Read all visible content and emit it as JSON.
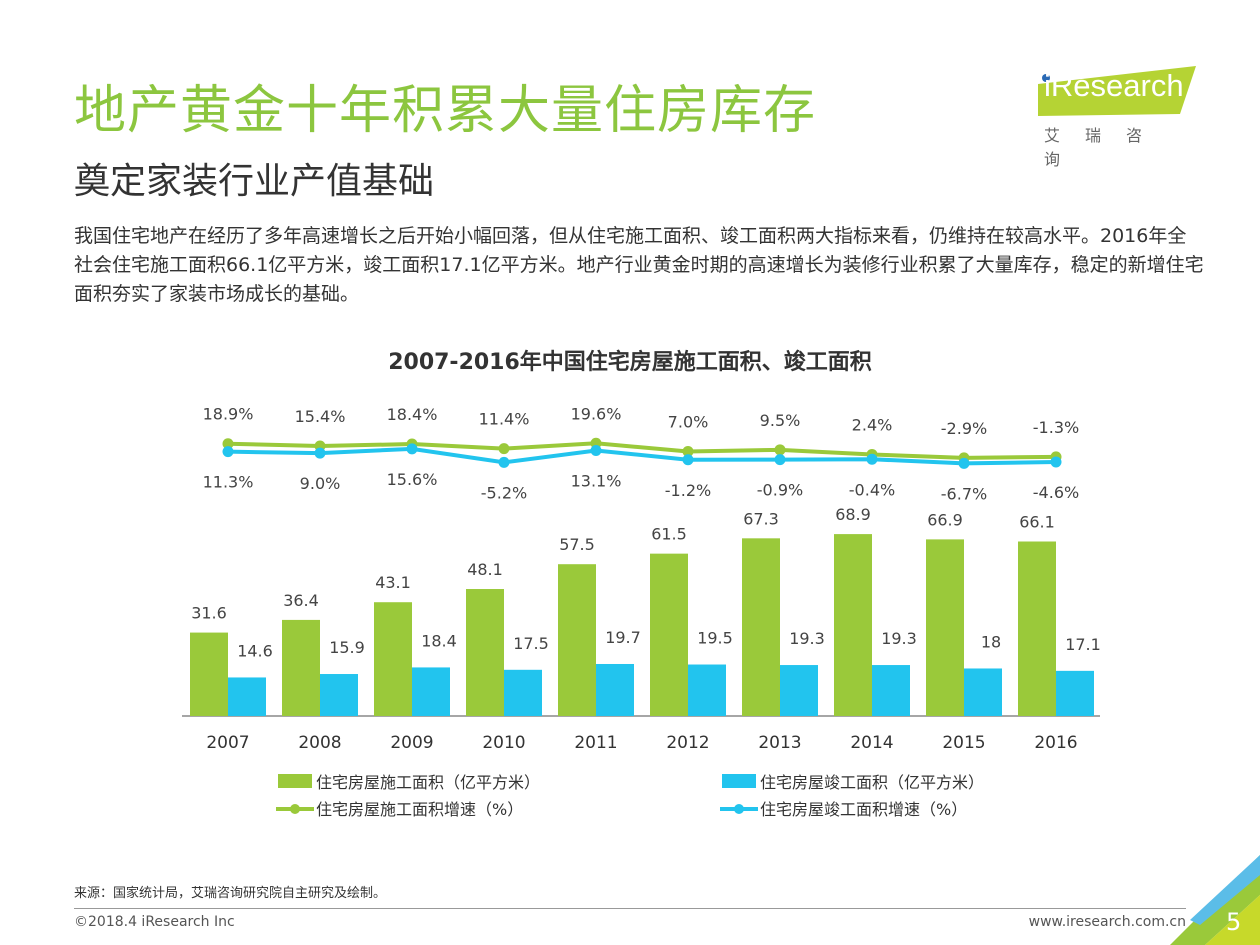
{
  "header": {
    "title": "地产黄金十年积累大量住房库存",
    "subtitle": "奠定家装行业产值基础",
    "description": "我国住宅地产在经历了多年高速增长之后开始小幅回落，但从住宅施工面积、竣工面积两大指标来看，仍维持在较高水平。2016年全社会住宅施工面积66.1亿平方米，竣工面积17.1亿平方米。地产行业黄金时期的高速增长为装修行业积累了大量库存，稳定的新增住宅面积夯实了家装市场成长的基础。"
  },
  "logo": {
    "word": "iResearch",
    "cn": "艾瑞咨询",
    "color": "#b5d334"
  },
  "chart_data": {
    "type": "bar+line",
    "title": "2007-2016年中国住宅房屋施工面积、竣工面积",
    "categories": [
      "2007",
      "2008",
      "2009",
      "2010",
      "2011",
      "2012",
      "2013",
      "2014",
      "2015",
      "2016"
    ],
    "series": [
      {
        "name": "住宅房屋施工面积（亿平方米）",
        "type": "bar",
        "color": "#9ac93a",
        "values": [
          31.6,
          36.4,
          43.1,
          48.1,
          57.5,
          61.5,
          67.3,
          68.9,
          66.9,
          66.1
        ]
      },
      {
        "name": "住宅房屋竣工面积（亿平方米）",
        "type": "bar",
        "color": "#22c4ee",
        "values": [
          14.6,
          15.9,
          18.4,
          17.5,
          19.7,
          19.5,
          19.3,
          19.3,
          18.0,
          17.1
        ]
      },
      {
        "name": "住宅房屋施工面积增速（%）",
        "type": "line",
        "color": "#9ac93a",
        "values": [
          18.9,
          15.4,
          18.4,
          11.4,
          19.6,
          7.0,
          9.5,
          2.4,
          -2.9,
          -1.3
        ]
      },
      {
        "name": "住宅房屋竣工面积增速（%）",
        "type": "line",
        "color": "#22c4ee",
        "values": [
          11.3,
          9.0,
          15.6,
          -5.2,
          13.1,
          -1.2,
          -0.9,
          -0.4,
          -6.7,
          -4.6
        ]
      }
    ],
    "legend": "bottom",
    "grid": false
  },
  "footer": {
    "source": "来源：国家统计局，艾瑞咨询研究院自主研究及绘制。",
    "copyright": "©2018.4 iResearch Inc",
    "url": "www.iresearch.com.cn",
    "page": "5"
  }
}
